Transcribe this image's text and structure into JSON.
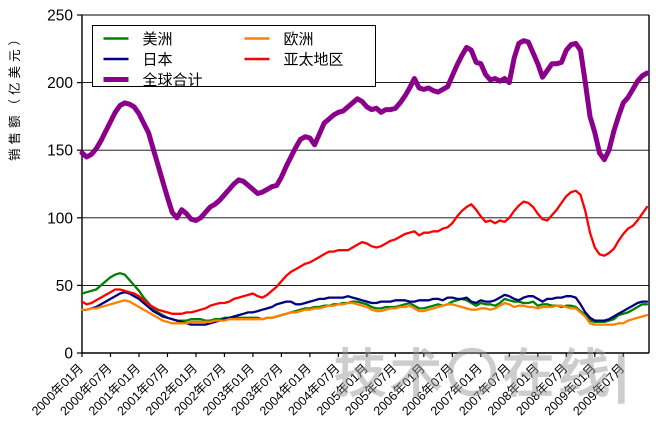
{
  "chart_data": {
    "type": "line",
    "title": "",
    "ylabel": "销售额（亿美元）",
    "ylim": [
      0,
      250
    ],
    "yticks": [
      0,
      50,
      100,
      150,
      200,
      250
    ],
    "grid": "horizontal",
    "legend_position": "top-left-inside",
    "n_points": 120,
    "x_tick_every": 6,
    "x_tick_labels": [
      "2000年01月",
      "2000年07月",
      "2001年01月",
      "2001年07月",
      "2002年01月",
      "2002年07月",
      "2003年01月",
      "2003年07月",
      "2004年01月",
      "2004年07月",
      "2005年01月",
      "2005年07月",
      "2006年01月",
      "2006年07月",
      "2007年01月",
      "2007年07月",
      "2008年01月",
      "2008年07月",
      "2009年01月",
      "2009年07月"
    ],
    "series": [
      {
        "key": "americas",
        "name": "美洲",
        "color": "#008000",
        "width": 2.3,
        "values": [
          44,
          45,
          46,
          47,
          50,
          53,
          56,
          58,
          59,
          58,
          54,
          50,
          46,
          41,
          37,
          33,
          30,
          28,
          26,
          25,
          24,
          24,
          24,
          25,
          25,
          25,
          24,
          24,
          25,
          25,
          26,
          26,
          26,
          26,
          26,
          26,
          26,
          26,
          25,
          26,
          26,
          27,
          28,
          29,
          30,
          31,
          32,
          33,
          33,
          34,
          34,
          35,
          35,
          36,
          36,
          37,
          37,
          38,
          38,
          37,
          36,
          34,
          33,
          33,
          34,
          34,
          34,
          35,
          36,
          37,
          35,
          33,
          33,
          34,
          35,
          36,
          35,
          36,
          38,
          39,
          40,
          39,
          37,
          35,
          37,
          36,
          36,
          35,
          37,
          40,
          39,
          38,
          38,
          37,
          37,
          38,
          35,
          36,
          36,
          35,
          35,
          34,
          35,
          35,
          34,
          31,
          28,
          24,
          23,
          23,
          23,
          24,
          25,
          28,
          29,
          30,
          32,
          34,
          36,
          36
        ]
      },
      {
        "key": "japan",
        "name": "日本",
        "color": "#000080",
        "width": 2.3,
        "values": [
          32,
          32,
          33,
          34,
          36,
          38,
          40,
          42,
          44,
          45,
          44,
          42,
          40,
          37,
          34,
          31,
          29,
          27,
          26,
          25,
          24,
          23,
          22,
          21,
          21,
          21,
          21,
          22,
          23,
          24,
          25,
          26,
          27,
          28,
          29,
          30,
          30,
          31,
          32,
          33,
          34,
          36,
          37,
          38,
          38,
          36,
          36,
          37,
          38,
          39,
          40,
          40,
          41,
          41,
          41,
          41,
          42,
          41,
          40,
          39,
          38,
          37,
          37,
          38,
          38,
          38,
          39,
          39,
          39,
          38,
          38,
          39,
          39,
          39,
          40,
          40,
          39,
          41,
          41,
          40,
          40,
          41,
          38,
          37,
          39,
          38,
          38,
          39,
          41,
          43,
          42,
          40,
          39,
          41,
          42,
          42,
          40,
          38,
          40,
          40,
          41,
          41,
          42,
          42,
          41,
          36,
          30,
          26,
          24,
          24,
          24,
          25,
          27,
          29,
          31,
          33,
          35,
          37,
          38,
          38
        ]
      },
      {
        "key": "global_total",
        "name": "全球合计",
        "color": "#8B008B",
        "width": 5,
        "values": [
          148,
          145,
          147,
          151,
          157,
          164,
          171,
          178,
          183,
          185,
          184,
          182,
          177,
          170,
          163,
          151,
          139,
          127,
          115,
          104,
          100,
          106,
          103,
          99,
          98,
          100,
          104,
          108,
          110,
          113,
          117,
          121,
          125,
          128,
          127,
          124,
          121,
          118,
          119,
          121,
          123,
          124,
          130,
          138,
          145,
          152,
          158,
          160,
          159,
          154,
          162,
          170,
          173,
          176,
          178,
          179,
          182,
          185,
          188,
          186,
          182,
          180,
          181,
          178,
          180,
          180,
          181,
          185,
          190,
          196,
          203,
          196,
          195,
          196,
          194,
          193,
          195,
          197,
          205,
          213,
          220,
          226,
          224,
          215,
          214,
          206,
          202,
          203,
          201,
          203,
          200,
          218,
          229,
          231,
          230,
          222,
          214,
          204,
          209,
          214,
          214,
          215,
          224,
          228,
          229,
          224,
          200,
          175,
          163,
          148,
          143,
          150,
          164,
          175,
          185,
          189,
          195,
          201,
          205,
          207
        ]
      },
      {
        "key": "europe",
        "name": "欧洲",
        "color": "#FF8000",
        "width": 2.3,
        "values": [
          32,
          32,
          33,
          33,
          34,
          35,
          36,
          37,
          38,
          39,
          38,
          36,
          34,
          32,
          30,
          28,
          26,
          24,
          23,
          22,
          22,
          22,
          22,
          23,
          23,
          23,
          23,
          23,
          24,
          24,
          24,
          25,
          25,
          25,
          25,
          25,
          25,
          25,
          25,
          26,
          26,
          27,
          28,
          29,
          30,
          30,
          31,
          32,
          32,
          33,
          33,
          34,
          35,
          35,
          36,
          36,
          37,
          37,
          36,
          35,
          34,
          32,
          31,
          31,
          32,
          33,
          33,
          34,
          34,
          35,
          33,
          31,
          31,
          32,
          33,
          34,
          35,
          36,
          36,
          35,
          34,
          33,
          32,
          32,
          33,
          33,
          32,
          33,
          35,
          37,
          36,
          34,
          35,
          35,
          34,
          34,
          33,
          34,
          34,
          34,
          35,
          35,
          34,
          33,
          33,
          30,
          27,
          22,
          21,
          21,
          21,
          21,
          21,
          22,
          22,
          24,
          25,
          26,
          27,
          28
        ]
      },
      {
        "key": "asia_pacific",
        "name": "亚太地区",
        "color": "#FF0000",
        "width": 2.3,
        "values": [
          38,
          36,
          37,
          39,
          41,
          43,
          45,
          47,
          47,
          46,
          45,
          44,
          42,
          39,
          36,
          34,
          32,
          31,
          30,
          29,
          29,
          29,
          30,
          30,
          31,
          32,
          33,
          35,
          36,
          37,
          37,
          38,
          40,
          41,
          42,
          43,
          44,
          42,
          41,
          43,
          46,
          49,
          53,
          57,
          60,
          62,
          64,
          66,
          67,
          69,
          71,
          73,
          75,
          75,
          76,
          76,
          76,
          78,
          80,
          82,
          81,
          79,
          78,
          79,
          81,
          83,
          84,
          86,
          88,
          89,
          90,
          87,
          89,
          89,
          90,
          90,
          92,
          93,
          96,
          101,
          105,
          108,
          110,
          106,
          101,
          97,
          98,
          96,
          98,
          97,
          100,
          105,
          109,
          112,
          111,
          108,
          103,
          99,
          98,
          102,
          106,
          111,
          116,
          119,
          120,
          117,
          105,
          89,
          78,
          73,
          72,
          74,
          77,
          83,
          88,
          92,
          94,
          98,
          103,
          108
        ]
      }
    ],
    "legend_order": [
      "americas",
      "europe",
      "japan",
      "asia_pacific",
      "global_total"
    ],
    "watermark": "技术〇在线|"
  }
}
